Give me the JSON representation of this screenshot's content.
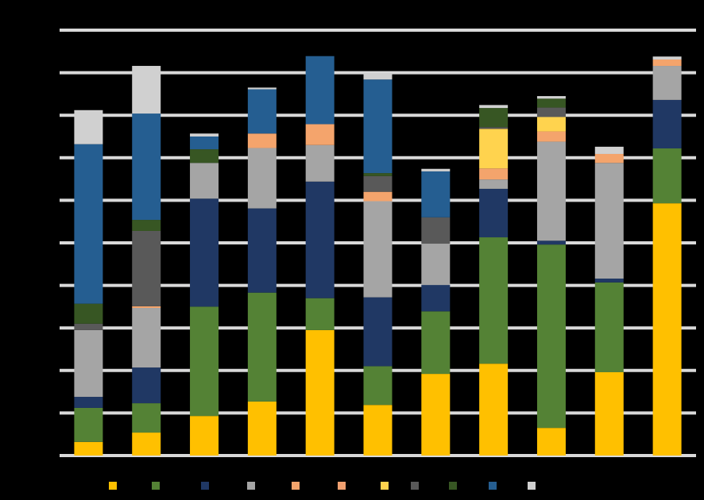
{
  "chart_data": {
    "type": "stacked_bar",
    "categories": [
      null,
      null,
      null,
      null,
      null,
      null,
      null,
      null,
      null,
      null,
      null
    ],
    "series": [
      {
        "color": "#ffc000",
        "values": [
          3.2,
          5.4,
          9.3,
          12.7,
          29.5,
          11.9,
          19.2,
          21.6,
          6.5,
          19.6,
          59.3
        ]
      },
      {
        "color": "#548235",
        "values": [
          8,
          6.9,
          25.7,
          25.6,
          7.5,
          9.1,
          14.7,
          29.7,
          43.1,
          21.1,
          12.9
        ]
      },
      {
        "color": "#203864",
        "values": [
          2.6,
          8.4,
          25.4,
          19.8,
          27.4,
          16.2,
          6.2,
          11.4,
          0.9,
          0.9,
          11.4
        ]
      },
      {
        "color": "#a5a5a5",
        "values": [
          15.7,
          14,
          8.4,
          14.2,
          8.6,
          22.6,
          9.7,
          2.2,
          23.3,
          27.2,
          8
        ]
      },
      {
        "color": "#f4a46c",
        "values": [
          0,
          0.4,
          0,
          3.4,
          4.9,
          2.2,
          0,
          2.6,
          2.4,
          2.1,
          1.5
        ]
      },
      {
        "color": "#f0a070",
        "values": [
          0,
          0,
          0,
          0,
          0,
          0,
          0,
          0,
          0,
          0,
          0
        ]
      },
      {
        "color": "#ffd34e",
        "values": [
          0,
          0,
          0,
          0,
          0,
          0,
          0,
          9.3,
          3.4,
          0,
          0
        ]
      },
      {
        "color": "#595959",
        "values": [
          1.5,
          17.7,
          0,
          0,
          0,
          3.7,
          6.2,
          0.4,
          2.2,
          0,
          0
        ]
      },
      {
        "color": "#375623",
        "values": [
          4.7,
          2.6,
          3.2,
          0,
          0,
          0.7,
          0,
          4.5,
          2.1,
          0,
          0
        ]
      },
      {
        "color": "#255e91",
        "values": [
          37.5,
          25,
          3,
          10.4,
          16,
          22,
          10.8,
          0,
          0,
          0,
          0
        ]
      },
      {
        "color": "#d0d0d0",
        "values": [
          8,
          11.2,
          0.7,
          0.4,
          0,
          1.5,
          0.6,
          0.7,
          0.6,
          1.7,
          0.7
        ]
      }
    ],
    "ylim": [
      0,
      100
    ],
    "yticks": [
      0,
      10,
      20,
      30,
      40,
      50,
      60,
      70,
      80,
      90,
      100
    ],
    "grid": true
  }
}
